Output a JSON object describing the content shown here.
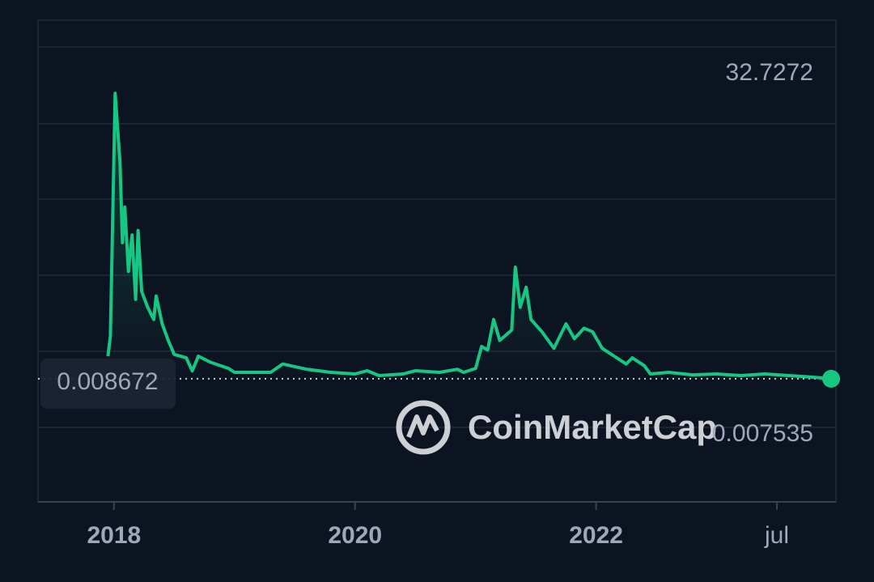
{
  "chart_data": {
    "type": "line",
    "watermark": "CoinMarketCap",
    "x": [
      2017.95,
      2017.97,
      2018.01,
      2018.05,
      2018.07,
      2018.09,
      2018.12,
      2018.15,
      2018.18,
      2018.2,
      2018.23,
      2018.28,
      2018.33,
      2018.35,
      2018.4,
      2018.45,
      2018.5,
      2018.6,
      2018.65,
      2018.7,
      2018.8,
      2018.95,
      2019.0,
      2019.3,
      2019.4,
      2019.6,
      2019.8,
      2020.0,
      2020.1,
      2020.2,
      2020.4,
      2020.5,
      2020.7,
      2020.85,
      2020.9,
      2021.0,
      2021.05,
      2021.1,
      2021.15,
      2021.2,
      2021.3,
      2021.33,
      2021.37,
      2021.42,
      2021.46,
      2021.55,
      2021.65,
      2021.75,
      2021.82,
      2021.9,
      2021.97,
      2022.05,
      2022.15,
      2022.25,
      2022.3,
      2022.4,
      2022.45,
      2022.6,
      2022.8,
      2023.0,
      2023.2,
      2023.4,
      2023.6,
      2023.8,
      2023.95
    ],
    "series": [
      {
        "color": "#16c784",
        "values": [
          2.6,
          4.9,
          32.7272,
          24.8,
          15.6,
          19.7,
          12.3,
          16.5,
          9.1,
          17.0,
          10.0,
          8.2,
          6.8,
          9.5,
          6.3,
          4.4,
          2.8,
          2.4,
          0.9,
          2.6,
          1.9,
          1.2,
          0.74,
          0.74,
          1.7,
          1.1,
          0.74,
          0.56,
          0.93,
          0.37,
          0.56,
          0.93,
          0.74,
          1.1,
          0.74,
          1.2,
          3.7,
          3.3,
          6.8,
          4.4,
          5.6,
          12.8,
          8.2,
          10.5,
          6.8,
          5.4,
          3.5,
          6.3,
          4.6,
          5.8,
          5.4,
          3.5,
          2.6,
          1.7,
          2.4,
          1.5,
          0.56,
          0.74,
          0.46,
          0.56,
          0.37,
          0.56,
          0.37,
          0.19,
          0.008672
        ]
      }
    ],
    "high": 32.7272,
    "low": 0.007535,
    "current": 0.008672,
    "xlim": [
      2017.37,
      2023.99
    ],
    "ylim": [
      -14.1,
      41.1
    ],
    "xticks": [
      {
        "value": 2018,
        "label": "2018"
      },
      {
        "value": 2020,
        "label": "2020"
      },
      {
        "value": 2022,
        "label": "2022"
      },
      {
        "value": 2023.5,
        "label": "jul"
      }
    ]
  }
}
